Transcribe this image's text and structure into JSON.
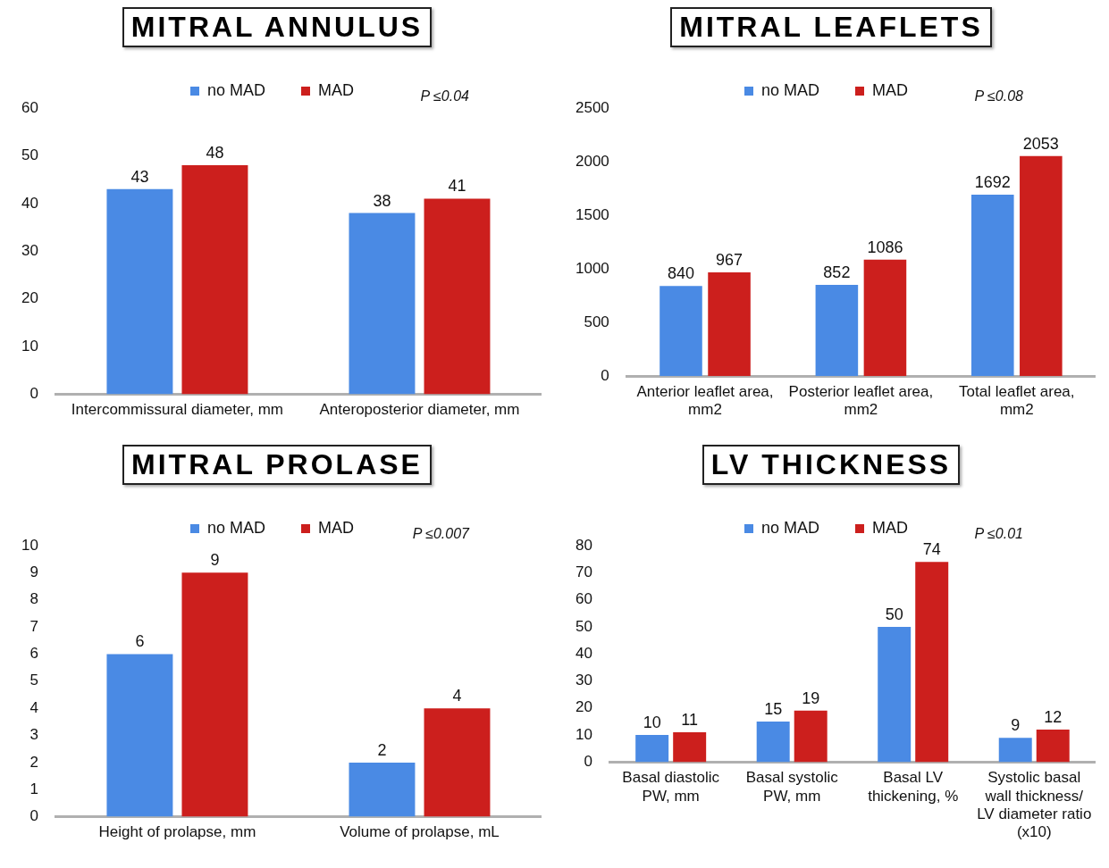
{
  "chart_data": [
    {
      "type": "bar",
      "title": "MITRAL ANNULUS",
      "categories": [
        "Intercommissural diameter, mm",
        "Anteroposterior diameter, mm"
      ],
      "series": [
        {
          "name": "no MAD",
          "color": "#4a8ae4",
          "values": [
            43,
            38
          ]
        },
        {
          "name": "MAD",
          "color": "#cc1f1d",
          "values": [
            48,
            41
          ]
        }
      ],
      "ylim": [
        0,
        60
      ],
      "yticks": [
        0,
        10,
        20,
        30,
        40,
        50,
        60
      ],
      "legend": "top",
      "data_labels": true,
      "annotations": [
        "P ≤0.04"
      ]
    },
    {
      "type": "bar",
      "title": "MITRAL LEAFLETS",
      "categories": [
        "Anterior leaflet area, mm2",
        "Posterior leaflet area, mm2",
        "Total leaflet area, mm2"
      ],
      "series": [
        {
          "name": "no MAD",
          "color": "#4a8ae4",
          "values": [
            840,
            852,
            1692
          ]
        },
        {
          "name": "MAD",
          "color": "#cc1f1d",
          "values": [
            967,
            1086,
            2053
          ]
        }
      ],
      "ylim": [
        0,
        2500
      ],
      "yticks": [
        0,
        500,
        1000,
        1500,
        2000,
        2500
      ],
      "legend": "top",
      "data_labels": true,
      "annotations": [
        "P ≤0.08"
      ]
    },
    {
      "type": "bar",
      "title": "MITRAL PROLASE",
      "categories": [
        "Height of prolapse, mm",
        "Volume of prolapse, mL"
      ],
      "series": [
        {
          "name": "no MAD",
          "color": "#4a8ae4",
          "values": [
            6,
            2
          ]
        },
        {
          "name": "MAD",
          "color": "#cc1f1d",
          "values": [
            9,
            4
          ]
        }
      ],
      "ylim": [
        0,
        10
      ],
      "yticks": [
        0,
        1,
        2,
        3,
        4,
        5,
        6,
        7,
        8,
        9,
        10
      ],
      "legend": "top",
      "data_labels": true,
      "annotations": [
        "P ≤0.007"
      ]
    },
    {
      "type": "bar",
      "title": "LV THICKNESS",
      "categories": [
        "Basal diastolic PW, mm",
        "Basal systolic PW, mm",
        "Basal LV thickening, %",
        "Systolic basal wall thickness/ LV diameter ratio (x10)"
      ],
      "series": [
        {
          "name": "no MAD",
          "color": "#4a8ae4",
          "values": [
            10,
            15,
            50,
            9
          ]
        },
        {
          "name": "MAD",
          "color": "#cc1f1d",
          "values": [
            11,
            19,
            74,
            12
          ]
        }
      ],
      "ylim": [
        0,
        80
      ],
      "yticks": [
        0,
        10,
        20,
        30,
        40,
        50,
        60,
        70,
        80
      ],
      "legend": "top",
      "data_labels": true,
      "annotations": [
        "P ≤0.01"
      ]
    }
  ]
}
